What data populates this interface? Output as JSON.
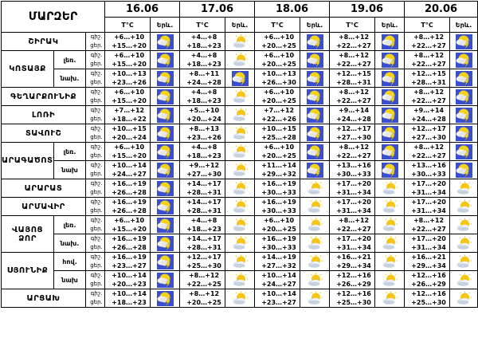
{
  "header": {
    "title": "ՄԱՐԶԵՐ",
    "temp_label": "T°C",
    "phen_label": "Երև.",
    "dates": [
      "16.06",
      "17.06",
      "18.06",
      "19.06",
      "20.06"
    ]
  },
  "row_labels": [
    "գիշ.",
    "ցեր."
  ],
  "rows": [
    {
      "region": "ՇԻՐԱԿ",
      "sub": "",
      "span": 1,
      "days": [
        {
          "night": "+6…+10",
          "day": "+15…+20",
          "icon": "sun-cloud-lightning-icon"
        },
        {
          "night": "+4…+8",
          "day": "+18…+23",
          "icon": "sun-cloud-icon"
        },
        {
          "night": "+6…+10",
          "day": "+20…+25",
          "icon": "sun-cloud-lightning-icon"
        },
        {
          "night": "+8…+12",
          "day": "+22…+27",
          "icon": "sun-cloud-lightning-icon"
        },
        {
          "night": "+8…+12",
          "day": "+22…+27",
          "icon": "sun-cloud-lightning-icon"
        }
      ]
    },
    {
      "region": "ԿՈՏԱՅՔ",
      "sub": "լեռ.",
      "span": 2,
      "days": [
        {
          "night": "+6…+10",
          "day": "+15…+20",
          "icon": "sun-cloud-lightning-icon"
        },
        {
          "night": "+4…+8",
          "day": "+18…+23",
          "icon": "sun-cloud-icon"
        },
        {
          "night": "+6…+10",
          "day": "+20…+25",
          "icon": "sun-cloud-lightning-icon"
        },
        {
          "night": "+8…+12",
          "day": "+22…+27",
          "icon": "sun-cloud-lightning-icon"
        },
        {
          "night": "+8…+12",
          "day": "+22…+27",
          "icon": "sun-cloud-lightning-icon"
        }
      ]
    },
    {
      "region": "",
      "sub": "նախ.",
      "span": 0,
      "days": [
        {
          "night": "+10…+13",
          "day": "+23…+26",
          "icon": "sun-cloud-lightning-icon"
        },
        {
          "night": "+8…+11",
          "day": "+24…+28",
          "icon": "sun-cloud-lightning-icon"
        },
        {
          "night": "+10…+13",
          "day": "+26…+30",
          "icon": "sun-cloud-lightning-icon"
        },
        {
          "night": "+12…+15",
          "day": "+28…+31",
          "icon": "sun-cloud-lightning-icon"
        },
        {
          "night": "+12…+15",
          "day": "+28…+31",
          "icon": "sun-cloud-lightning-icon"
        }
      ]
    },
    {
      "region": "ԳԵՂԱՐՔՈՒՆԻՔ",
      "sub": "",
      "span": 1,
      "days": [
        {
          "night": "+6…+10",
          "day": "+15…+20",
          "icon": "sun-cloud-lightning-icon"
        },
        {
          "night": "+4…+8",
          "day": "+18…+23",
          "icon": "sun-cloud-icon"
        },
        {
          "night": "+6…+10",
          "day": "+20…+25",
          "icon": "sun-cloud-lightning-icon"
        },
        {
          "night": "+8…+12",
          "day": "+22…+27",
          "icon": "sun-cloud-lightning-icon"
        },
        {
          "night": "+8…+12",
          "day": "+22…+27",
          "icon": "sun-cloud-lightning-icon"
        }
      ]
    },
    {
      "region": "ԼՈՌԻ",
      "sub": "",
      "span": 1,
      "days": [
        {
          "night": "+7…+12",
          "day": "+18…+22",
          "icon": "sun-cloud-lightning-icon"
        },
        {
          "night": "+5…+10",
          "day": "+20…+24",
          "icon": "sun-cloud-icon"
        },
        {
          "night": "+7…+12",
          "day": "+22…+26",
          "icon": "sun-cloud-lightning-icon"
        },
        {
          "night": "+9…+14",
          "day": "+24…+28",
          "icon": "sun-cloud-lightning-icon"
        },
        {
          "night": "+9…+14",
          "day": "+24…+28",
          "icon": "sun-cloud-lightning-icon"
        }
      ]
    },
    {
      "region": "ՏԱՎՈՒՇ",
      "sub": "",
      "span": 1,
      "days": [
        {
          "night": "+10…+15",
          "day": "+20…+24",
          "icon": "sun-cloud-lightning-icon"
        },
        {
          "night": "+8…+13",
          "day": "+23…+26",
          "icon": "sun-cloud-icon"
        },
        {
          "night": "+10…+15",
          "day": "+25…+28",
          "icon": "sun-cloud-lightning-icon"
        },
        {
          "night": "+12…+17",
          "day": "+27…+30",
          "icon": "sun-cloud-lightning-icon"
        },
        {
          "night": "+12…+17",
          "day": "+27…+30",
          "icon": "sun-cloud-lightning-icon"
        }
      ]
    },
    {
      "region": "ԱՐԱԳԱԾՈՏՆ",
      "sub": "լեռ.",
      "span": 2,
      "days": [
        {
          "night": "+6…+10",
          "day": "+15…+20",
          "icon": "sun-cloud-lightning-icon"
        },
        {
          "night": "+4…+8",
          "day": "+18…+23",
          "icon": "sun-cloud-icon"
        },
        {
          "night": "+6…+10",
          "day": "+20…+25",
          "icon": "sun-cloud-lightning-icon"
        },
        {
          "night": "+8…+12",
          "day": "+22…+27",
          "icon": "sun-cloud-lightning-icon"
        },
        {
          "night": "+8…+12",
          "day": "+22…+27",
          "icon": "sun-cloud-lightning-icon"
        }
      ]
    },
    {
      "region": "",
      "sub": "նախ",
      "span": 0,
      "days": [
        {
          "night": "+10…+14",
          "day": "+24…+27",
          "icon": "sun-cloud-lightning-icon"
        },
        {
          "night": "+9…+12",
          "day": "+27…+30",
          "icon": "sun-cloud-icon"
        },
        {
          "night": "+11…+14",
          "day": "+29…+32",
          "icon": "sun-cloud-lightning-icon"
        },
        {
          "night": "+13…+16",
          "day": "+30…+33",
          "icon": "sun-cloud-lightning-icon"
        },
        {
          "night": "+13…+16",
          "day": "+30…+33",
          "icon": "sun-cloud-lightning-icon"
        }
      ]
    },
    {
      "region": "ԱՐԱՐԱՏ",
      "sub": "",
      "span": 1,
      "days": [
        {
          "night": "+16…+19",
          "day": "+26…+28",
          "icon": "sun-cloud-lightning-icon"
        },
        {
          "night": "+14…+17",
          "day": "+28…+31",
          "icon": "sun-cloud-icon"
        },
        {
          "night": "+16…+19",
          "day": "+30…+33",
          "icon": "sun-cloud-icon"
        },
        {
          "night": "+17…+20",
          "day": "+31…+34",
          "icon": "sun-cloud-icon"
        },
        {
          "night": "+17…+20",
          "day": "+31…+34",
          "icon": "sun-cloud-icon"
        }
      ]
    },
    {
      "region": "ԱՐՄԱՎԻՐ",
      "sub": "",
      "span": 1,
      "days": [
        {
          "night": "+16…+19",
          "day": "+26…+28",
          "icon": "sun-cloud-lightning-icon"
        },
        {
          "night": "+14…+17",
          "day": "+28…+31",
          "icon": "sun-cloud-icon"
        },
        {
          "night": "+16…+19",
          "day": "+30…+33",
          "icon": "sun-cloud-icon"
        },
        {
          "night": "+17…+20",
          "day": "+31…+34",
          "icon": "sun-cloud-icon"
        },
        {
          "night": "+17…+20",
          "day": "+31…+34",
          "icon": "sun-cloud-icon"
        }
      ]
    },
    {
      "region": "ՎԱՅՈՑ ՁՈՐ",
      "sub": "լեռ.",
      "span": 2,
      "days": [
        {
          "night": "+6…+10",
          "day": "+15…+20",
          "icon": "sun-cloud-lightning-icon"
        },
        {
          "night": "+4…+8",
          "day": "+18…+23",
          "icon": "sun-cloud-icon"
        },
        {
          "night": "+6…+10",
          "day": "+20…+25",
          "icon": "sun-cloud-icon"
        },
        {
          "night": "+8…+12",
          "day": "+22…+27",
          "icon": "sun-cloud-icon"
        },
        {
          "night": "+8…+12",
          "day": "+22…+27",
          "icon": "sun-cloud-icon"
        }
      ]
    },
    {
      "region": "",
      "sub": "նախ.",
      "span": 0,
      "days": [
        {
          "night": "+16…+19",
          "day": "+26…+28",
          "icon": "sun-cloud-lightning-icon"
        },
        {
          "night": "+14…+17",
          "day": "+28…+31",
          "icon": "sun-cloud-icon"
        },
        {
          "night": "+16…+19",
          "day": "+30…+33",
          "icon": "sun-cloud-icon"
        },
        {
          "night": "+17…+20",
          "day": "+31…+34",
          "icon": "sun-cloud-icon"
        },
        {
          "night": "+17…+20",
          "day": "+31…+34",
          "icon": "sun-cloud-icon"
        }
      ]
    },
    {
      "region": "ՍՅՈՒՆԻՔ",
      "sub": "հով.",
      "span": 2,
      "days": [
        {
          "night": "+16…+19",
          "day": "+23…+27",
          "icon": "sun-cloud-lightning-icon"
        },
        {
          "night": "+12…+17",
          "day": "+25…+30",
          "icon": "sun-cloud-icon"
        },
        {
          "night": "+14…+19",
          "day": "+27…+32",
          "icon": "sun-cloud-icon"
        },
        {
          "night": "+16…+21",
          "day": "+29…+34",
          "icon": "sun-cloud-icon"
        },
        {
          "night": "+16…+21",
          "day": "+29…+34",
          "icon": "sun-cloud-icon"
        }
      ]
    },
    {
      "region": "",
      "sub": "նախ",
      "span": 0,
      "days": [
        {
          "night": "+10…+14",
          "day": "+20…+23",
          "icon": "sun-cloud-lightning-icon"
        },
        {
          "night": "+8…+12",
          "day": "+22…+25",
          "icon": "sun-cloud-icon"
        },
        {
          "night": "+10…+14",
          "day": "+24…+27",
          "icon": "sun-cloud-icon"
        },
        {
          "night": "+12…+16",
          "day": "+26…+29",
          "icon": "sun-cloud-icon"
        },
        {
          "night": "+12…+16",
          "day": "+26…+29",
          "icon": "sun-cloud-icon"
        }
      ]
    },
    {
      "region": "ԱՐՑԱԽ",
      "sub": "",
      "span": 1,
      "days": [
        {
          "night": "+10…+14",
          "day": "+18…+23",
          "icon": "sun-cloud-lightning-icon"
        },
        {
          "night": "+8…+12",
          "day": "+20…+25",
          "icon": "sun-cloud-icon"
        },
        {
          "night": "+10…+14",
          "day": "+23…+27",
          "icon": "sun-cloud-icon"
        },
        {
          "night": "+12…+16",
          "day": "+25…+30",
          "icon": "sun-cloud-icon"
        },
        {
          "night": "+12…+16",
          "day": "+25…+30",
          "icon": "sun-cloud-icon"
        }
      ]
    }
  ]
}
